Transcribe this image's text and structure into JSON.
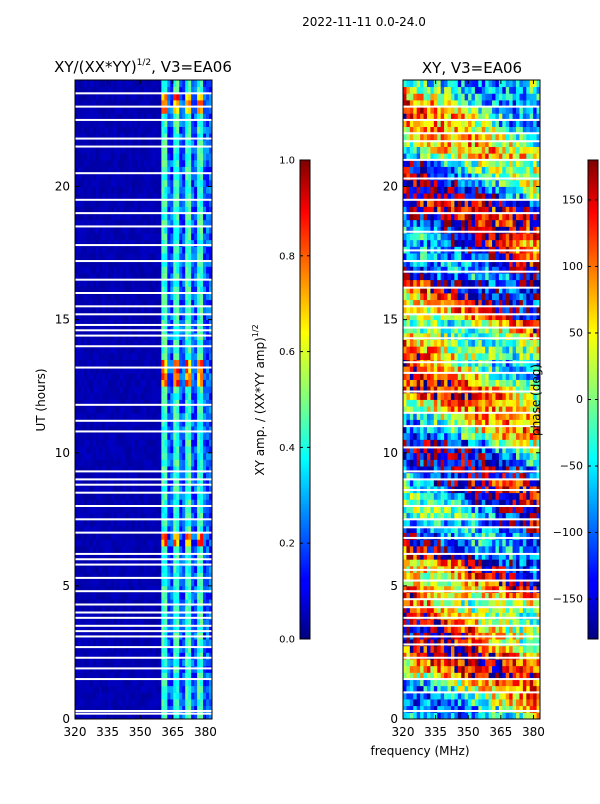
{
  "suptitle": "2022-11-11 0.0-24.0",
  "shared_xlabel": "frequency (MHz)",
  "chart_data": [
    {
      "type": "heatmap",
      "title_main": "XY/(XX*YY)",
      "title_sup": "1/2",
      "title_suffix": ", V3=EA06",
      "xlabel": "frequency (MHz)",
      "ylabel": "UT (hours)",
      "xlim": [
        320,
        383
      ],
      "ylim": [
        0,
        24
      ],
      "xticks": [
        320,
        335,
        350,
        365,
        380
      ],
      "yticks": [
        0,
        5,
        10,
        15,
        20
      ],
      "colorbar": {
        "label_main": "XY amp. / (XX*YY amp)",
        "label_sup": "1/2",
        "range": [
          0.0,
          1.0
        ],
        "ticks": [
          "0.0",
          "0.2",
          "0.4",
          "0.6",
          "0.8",
          "1.0"
        ],
        "tick_values": [
          0.0,
          0.2,
          0.4,
          0.6,
          0.8,
          1.0
        ],
        "colormap": "jet"
      },
      "band_edges_mhz": [
        360,
        363,
        365.5,
        368,
        371,
        373,
        376.5,
        379
      ],
      "gaps_hours": [
        0.2,
        0.3,
        1.5,
        1.9,
        2.3,
        2.7,
        3.1,
        3.3,
        3.5,
        3.8,
        4.0,
        4.3,
        4.8,
        5.3,
        5.8,
        6.0,
        6.2,
        7.0,
        7.5,
        8.0,
        8.5,
        8.8,
        9.0,
        9.3,
        10.8,
        11.2,
        11.8,
        13.2,
        14.0,
        14.4,
        14.6,
        14.8,
        15.2,
        15.5,
        16.0,
        16.5,
        17.2,
        17.8,
        18.5,
        19.0,
        19.5,
        20.5,
        21.5,
        21.8,
        22.5,
        23.0,
        23.5
      ],
      "bright_hours": [
        [
          6.5,
          7.0
        ],
        [
          12.5,
          13.5
        ],
        [
          22.8,
          23.5
        ]
      ]
    },
    {
      "type": "heatmap",
      "title": "XY, V3=EA06",
      "xlabel": "frequency (MHz)",
      "ylabel": "",
      "xlim": [
        320,
        383
      ],
      "ylim": [
        0,
        24
      ],
      "xticks": [
        320,
        335,
        350,
        365,
        380
      ],
      "yticks": [
        0,
        5,
        10,
        15,
        20
      ],
      "colorbar": {
        "label": "phase (deg)",
        "range": [
          -180,
          180
        ],
        "ticks": [
          "150",
          "100",
          "50",
          "0",
          "−50",
          "−100",
          "−150"
        ],
        "tick_values": [
          150,
          100,
          50,
          0,
          -50,
          -100,
          -150
        ],
        "colormap": "jet"
      },
      "gaps_hours": [
        0.3,
        1.0,
        1.5,
        2.3,
        2.8,
        3.1,
        3.5,
        3.8,
        4.2,
        4.5,
        4.8,
        5.2,
        5.6,
        6.2,
        6.8,
        7.2,
        7.5,
        8.0,
        8.6,
        9.0,
        9.3,
        10.2,
        11.0,
        11.5,
        12.3,
        13.0,
        13.4,
        14.3,
        14.7,
        15.2,
        15.5,
        16.2,
        16.8,
        17.2,
        17.6,
        18.3,
        19.0,
        19.5,
        20.3,
        21.0,
        21.7,
        22.0,
        22.5,
        23.0
      ]
    }
  ]
}
